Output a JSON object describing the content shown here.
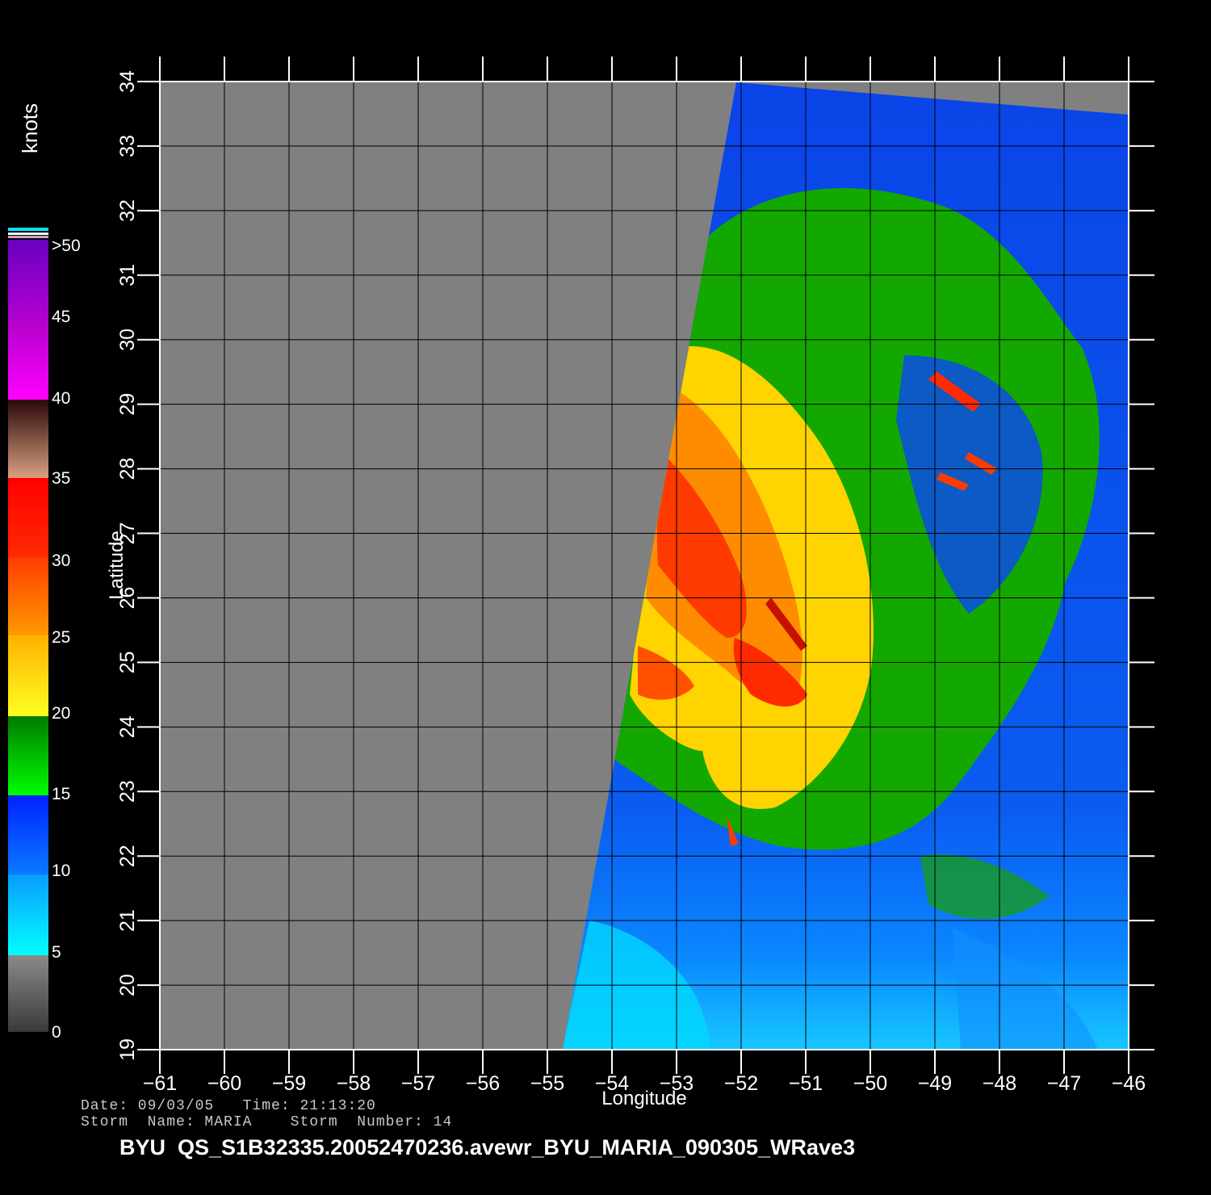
{
  "map": {
    "xlabel": "Longitude",
    "ylabel": "Latitude",
    "lon_range": [
      -61,
      -46
    ],
    "lat_range": [
      19,
      34
    ],
    "lon_ticks": [
      "-61",
      "-60",
      "-59",
      "-58",
      "-57",
      "-56",
      "-55",
      "-54",
      "-53",
      "-52",
      "-51",
      "-50",
      "-49",
      "-48",
      "-47",
      "-46"
    ],
    "lat_ticks": [
      "19",
      "20",
      "21",
      "22",
      "23",
      "24",
      "25",
      "26",
      "27",
      "28",
      "29",
      "30",
      "31",
      "32",
      "33",
      "34"
    ],
    "background_color": "#808080",
    "grid": true
  },
  "colorbar": {
    "units": "knots",
    "labels": [
      ">50",
      "45",
      "40",
      "35",
      "30",
      "25",
      "20",
      "15",
      "10",
      "5",
      "0"
    ],
    "colors": {
      "0_5": "#5a5a5a",
      "5_10": "#00e8ff",
      "10_15": "#0050ff",
      "15_20": "#00c000",
      "20_25": "#ffe000",
      "25_30": "#ff6a00",
      "30_35": "#ff1a00",
      "35_40": "#6a2a1a",
      "40_45": "#ff00ff",
      "45_50": "#9a00d0"
    }
  },
  "footer": {
    "line1": "Date: 09/03/05   Time: 21:13:20",
    "line2": "Storm  Name: MARIA    Storm  Number: 14",
    "filename": "BYU  QS_S1B32335.20052470236.avewr_BYU_MARIA_090305_WRave3"
  }
}
